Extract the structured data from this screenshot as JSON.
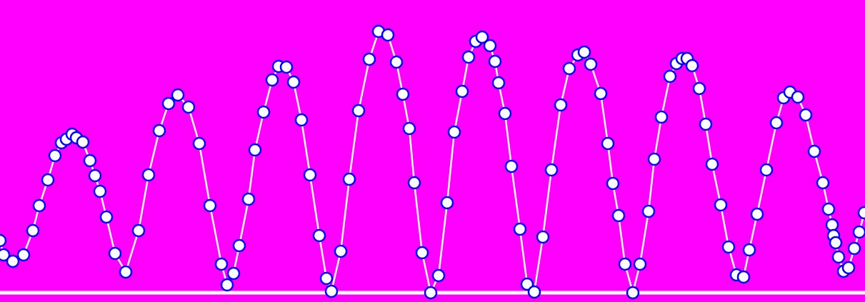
{
  "chart_data": {
    "type": "line",
    "background": "#ff00ff",
    "x": [
      0,
      5,
      18,
      33,
      46,
      55,
      67,
      77,
      86,
      93,
      101,
      107,
      116,
      126,
      133,
      140,
      149,
      161,
      176,
      194,
      208,
      223,
      236,
      249,
      264,
      279,
      294,
      310,
      318,
      327,
      335,
      348,
      357,
      369,
      381,
      390,
      401,
      411,
      422,
      434,
      447,
      457,
      464,
      477,
      489,
      502,
      517,
      530,
      543,
      555,
      564,
      573,
      580,
      591,
      603,
      614,
      626,
      636,
      647,
      656,
      666,
      675,
      686,
      693,
      698,
      707,
      716,
      728,
      738,
      748,
      760,
      772,
      785,
      797,
      809,
      818,
      827,
      841,
      851,
      858,
      866,
      875,
      886,
      896,
      908,
      916,
      926,
      938,
      947,
      955,
      962,
      969,
      979,
      988,
      997,
      1009,
      1020,
      1031,
      1041,
      1049,
      1060,
      1073,
      1087,
      1097,
      1106,
      1117,
      1128,
      1140,
      1152,
      1160,
      1165,
      1167,
      1170,
      1174,
      1181,
      1188,
      1196,
      1203,
      1210
    ],
    "series": [
      {
        "color": "#ffffff",
        "marker_color": "#0000ff",
        "values": [
          73,
          53,
          44,
          53,
          87,
          122,
          158,
          192,
          210,
          215,
          222,
          217,
          211,
          185,
          164,
          142,
          106,
          55,
          29,
          87,
          165,
          227,
          265,
          277,
          260,
          209,
          122,
          40,
          11,
          27,
          66,
          131,
          200,
          253,
          298,
          317,
          316,
          295,
          242,
          165,
          80,
          20,
          2,
          58,
          159,
          255,
          327,
          366,
          361,
          323,
          278,
          230,
          154,
          56,
          0,
          24,
          126,
          225,
          282,
          330,
          352,
          358,
          346,
          324,
          294,
          251,
          177,
          89,
          12,
          1,
          78,
          172,
          263,
          314,
          333,
          337,
          320,
          279,
          209,
          153,
          108,
          40,
          0,
          40,
          114,
          187,
          246,
          303,
          321,
          328,
          328,
          318,
          286,
          236,
          180,
          123,
          64,
          25,
          22,
          60,
          110,
          172,
          238,
          273,
          281,
          274,
          249,
          198,
          154,
          117,
          95,
          80,
          70,
          50,
          30,
          35,
          62,
          85,
          112
        ]
      }
    ],
    "xlim": [
      0,
      1211
    ],
    "ylim": [
      -13,
      410
    ]
  }
}
